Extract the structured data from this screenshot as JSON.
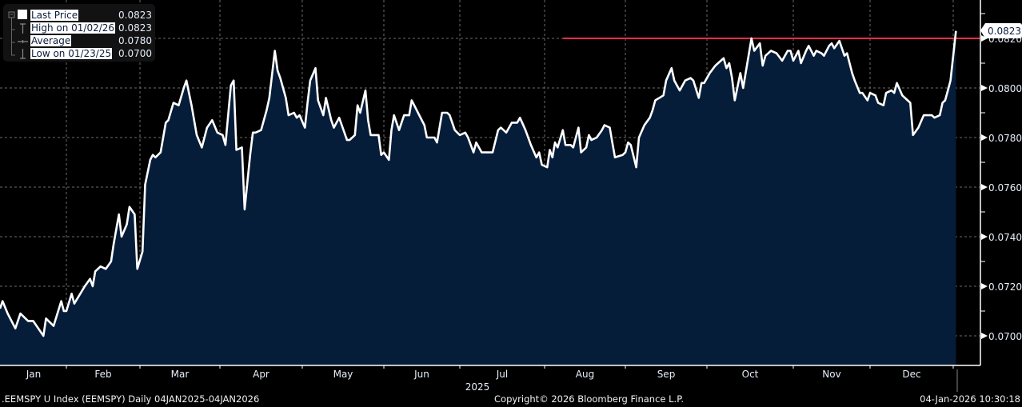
{
  "chart_data": {
    "type": "area",
    "ticker": ".EEMSPY U Index (EEMSPY) Daily 04JAN2025-04JAN2026",
    "copyright": "Copyright© 2026 Bloomberg Finance L.P.",
    "timestamp": "04-Jan-2026 10:30:18",
    "year_label": "2025",
    "x_tick_labels": [
      "Jan",
      "Feb",
      "Mar",
      "Apr",
      "May",
      "Jun",
      "Jul",
      "Aug",
      "Sep",
      "Oct",
      "Nov",
      "Dec"
    ],
    "y_ticks": [
      0.07,
      0.072,
      0.074,
      0.076,
      0.078,
      0.08,
      0.082
    ],
    "y_tick_labels": [
      "0.0700",
      "0.0720",
      "0.0740",
      "0.0760",
      "0.0780",
      "0.0800",
      "0.0820"
    ],
    "ylim": [
      0.0688,
      0.0833
    ],
    "xlim": [
      "2025-01-06",
      "2026-01-04"
    ],
    "grid": true,
    "legend_placement": "top-left",
    "colors": {
      "line": "#ffffff",
      "fill": "#061d3a",
      "high_line": "#ff2a4d",
      "background": "#000000",
      "axis_text": "#e6eefa"
    },
    "legend": [
      {
        "name": "Last Price",
        "value": "0.0823",
        "icon": "filled-square-icon"
      },
      {
        "name": "High on 01/02/26",
        "value": "0.0823",
        "icon": "high-marker-icon"
      },
      {
        "name": "Average",
        "value": "0.0780",
        "icon": "average-marker-icon"
      },
      {
        "name": "Low on 01/23/25",
        "value": "0.0700",
        "icon": "low-marker-icon"
      }
    ],
    "last_price_tag": "0.0823",
    "high_line": {
      "value": 0.082,
      "start": "2025-08-08"
    },
    "series": [
      {
        "points": [
          [
            "2025-01-06",
            0.0711
          ],
          [
            "2025-01-07",
            0.0714
          ],
          [
            "2025-01-09",
            0.0709
          ],
          [
            "2025-01-12",
            0.0703
          ],
          [
            "2025-01-14",
            0.0709
          ],
          [
            "2025-01-17",
            0.0706
          ],
          [
            "2025-01-19",
            0.0706
          ],
          [
            "2025-01-23",
            0.07
          ],
          [
            "2025-01-24",
            0.0707
          ],
          [
            "2025-01-27",
            0.0704
          ],
          [
            "2025-01-30",
            0.0714
          ],
          [
            "2025-01-31",
            0.071
          ],
          [
            "2025-02-01",
            0.071
          ],
          [
            "2025-02-03",
            0.0717
          ],
          [
            "2025-02-04",
            0.0713
          ],
          [
            "2025-02-08",
            0.072
          ],
          [
            "2025-02-10",
            0.0723
          ],
          [
            "2025-02-11",
            0.072
          ],
          [
            "2025-02-12",
            0.0726
          ],
          [
            "2025-02-14",
            0.0728
          ],
          [
            "2025-02-16",
            0.0727
          ],
          [
            "2025-02-18",
            0.073
          ],
          [
            "2025-02-19",
            0.0737
          ],
          [
            "2025-02-21",
            0.0749
          ],
          [
            "2025-02-22",
            0.074
          ],
          [
            "2025-02-24",
            0.0745
          ],
          [
            "2025-02-25",
            0.0752
          ],
          [
            "2025-02-27",
            0.0749
          ],
          [
            "2025-02-28",
            0.0727
          ],
          [
            "2025-03-02",
            0.0734
          ],
          [
            "2025-03-03",
            0.0761
          ],
          [
            "2025-03-05",
            0.0771
          ],
          [
            "2025-03-06",
            0.0773
          ],
          [
            "2025-03-07",
            0.0772
          ],
          [
            "2025-03-09",
            0.0774
          ],
          [
            "2025-03-11",
            0.0786
          ],
          [
            "2025-03-12",
            0.0787
          ],
          [
            "2025-03-14",
            0.0794
          ],
          [
            "2025-03-16",
            0.0793
          ],
          [
            "2025-03-18",
            0.08
          ],
          [
            "2025-03-19",
            0.0803
          ],
          [
            "2025-03-21",
            0.0793
          ],
          [
            "2025-03-23",
            0.0781
          ],
          [
            "2025-03-25",
            0.0776
          ],
          [
            "2025-03-27",
            0.0784
          ],
          [
            "2025-03-29",
            0.0787
          ],
          [
            "2025-03-31",
            0.0782
          ],
          [
            "2025-04-02",
            0.0781
          ],
          [
            "2025-04-03",
            0.0777
          ],
          [
            "2025-04-05",
            0.0801
          ],
          [
            "2025-04-06",
            0.0803
          ],
          [
            "2025-04-07",
            0.0775
          ],
          [
            "2025-04-09",
            0.0776
          ],
          [
            "2025-04-10",
            0.0751
          ],
          [
            "2025-04-12",
            0.0773
          ],
          [
            "2025-04-13",
            0.0782
          ],
          [
            "2025-04-14",
            0.0782
          ],
          [
            "2025-04-16",
            0.0783
          ],
          [
            "2025-04-18",
            0.0791
          ],
          [
            "2025-04-19",
            0.0796
          ],
          [
            "2025-04-21",
            0.0815
          ],
          [
            "2025-04-22",
            0.0807
          ],
          [
            "2025-04-23",
            0.0804
          ],
          [
            "2025-04-25",
            0.0796
          ],
          [
            "2025-04-26",
            0.0789
          ],
          [
            "2025-04-28",
            0.079
          ],
          [
            "2025-04-29",
            0.0788
          ],
          [
            "2025-04-30",
            0.0789
          ],
          [
            "2025-05-02",
            0.0784
          ],
          [
            "2025-05-03",
            0.0794
          ],
          [
            "2025-05-04",
            0.0803
          ],
          [
            "2025-05-06",
            0.0808
          ],
          [
            "2025-05-07",
            0.0795
          ],
          [
            "2025-05-09",
            0.0789
          ],
          [
            "2025-05-10",
            0.0796
          ],
          [
            "2025-05-12",
            0.0787
          ],
          [
            "2025-05-13",
            0.0784
          ],
          [
            "2025-05-15",
            0.0788
          ],
          [
            "2025-05-16",
            0.0785
          ],
          [
            "2025-05-18",
            0.0779
          ],
          [
            "2025-05-19",
            0.0779
          ],
          [
            "2025-05-21",
            0.0781
          ],
          [
            "2025-05-22",
            0.0793
          ],
          [
            "2025-05-23",
            0.079
          ],
          [
            "2025-05-25",
            0.0799
          ],
          [
            "2025-05-26",
            0.0787
          ],
          [
            "2025-05-27",
            0.0781
          ],
          [
            "2025-05-30",
            0.0781
          ],
          [
            "2025-05-31",
            0.0773
          ],
          [
            "2025-06-01",
            0.0774
          ],
          [
            "2025-06-03",
            0.0771
          ],
          [
            "2025-06-04",
            0.0783
          ],
          [
            "2025-06-05",
            0.0789
          ],
          [
            "2025-06-07",
            0.0783
          ],
          [
            "2025-06-09",
            0.0789
          ],
          [
            "2025-06-11",
            0.0789
          ],
          [
            "2025-06-12",
            0.0795
          ],
          [
            "2025-06-13",
            0.0793
          ],
          [
            "2025-06-15",
            0.0789
          ],
          [
            "2025-06-17",
            0.0785
          ],
          [
            "2025-06-18",
            0.078
          ],
          [
            "2025-06-21",
            0.078
          ],
          [
            "2025-06-22",
            0.0778
          ],
          [
            "2025-06-24",
            0.079
          ],
          [
            "2025-06-26",
            0.079
          ],
          [
            "2025-06-27",
            0.0789
          ],
          [
            "2025-06-29",
            0.0783
          ],
          [
            "2025-07-01",
            0.0781
          ],
          [
            "2025-07-03",
            0.0782
          ],
          [
            "2025-07-04",
            0.078
          ],
          [
            "2025-07-06",
            0.0774
          ],
          [
            "2025-07-07",
            0.0778
          ],
          [
            "2025-07-09",
            0.0774
          ],
          [
            "2025-07-13",
            0.0774
          ],
          [
            "2025-07-15",
            0.0783
          ],
          [
            "2025-07-16",
            0.0784
          ],
          [
            "2025-07-18",
            0.0782
          ],
          [
            "2025-07-20",
            0.0786
          ],
          [
            "2025-07-22",
            0.0786
          ],
          [
            "2025-07-23",
            0.0788
          ],
          [
            "2025-07-25",
            0.0783
          ],
          [
            "2025-07-27",
            0.0777
          ],
          [
            "2025-07-29",
            0.0772
          ],
          [
            "2025-07-30",
            0.0774
          ],
          [
            "2025-07-31",
            0.0769
          ],
          [
            "2025-08-02",
            0.0768
          ],
          [
            "2025-08-03",
            0.0775
          ],
          [
            "2025-08-04",
            0.0772
          ],
          [
            "2025-08-05",
            0.0778
          ],
          [
            "2025-08-06",
            0.0776
          ],
          [
            "2025-08-08",
            0.0783
          ],
          [
            "2025-08-09",
            0.0777
          ],
          [
            "2025-08-11",
            0.0777
          ],
          [
            "2025-08-12",
            0.0776
          ],
          [
            "2025-08-14",
            0.0784
          ],
          [
            "2025-08-15",
            0.0774
          ],
          [
            "2025-08-17",
            0.0776
          ],
          [
            "2025-08-18",
            0.0781
          ],
          [
            "2025-08-19",
            0.0779
          ],
          [
            "2025-08-21",
            0.078
          ],
          [
            "2025-08-23",
            0.0783
          ],
          [
            "2025-08-24",
            0.0785
          ],
          [
            "2025-08-26",
            0.0784
          ],
          [
            "2025-08-27",
            0.0778
          ],
          [
            "2025-08-28",
            0.0772
          ],
          [
            "2025-08-31",
            0.0773
          ],
          [
            "2025-09-01",
            0.0774
          ],
          [
            "2025-09-02",
            0.0778
          ],
          [
            "2025-09-03",
            0.0777
          ],
          [
            "2025-09-05",
            0.0768
          ],
          [
            "2025-09-06",
            0.078
          ],
          [
            "2025-09-08",
            0.0785
          ],
          [
            "2025-09-10",
            0.0788
          ],
          [
            "2025-09-11",
            0.0791
          ],
          [
            "2025-09-12",
            0.0795
          ],
          [
            "2025-09-15",
            0.0797
          ],
          [
            "2025-09-16",
            0.0803
          ],
          [
            "2025-09-18",
            0.0808
          ],
          [
            "2025-09-19",
            0.0803
          ],
          [
            "2025-09-21",
            0.0799
          ],
          [
            "2025-09-23",
            0.0803
          ],
          [
            "2025-09-25",
            0.0804
          ],
          [
            "2025-09-26",
            0.0803
          ],
          [
            "2025-09-28",
            0.0796
          ],
          [
            "2025-09-29",
            0.0802
          ],
          [
            "2025-09-30",
            0.0802
          ],
          [
            "2025-10-02",
            0.0806
          ],
          [
            "2025-10-04",
            0.0809
          ],
          [
            "2025-10-06",
            0.0811
          ],
          [
            "2025-10-07",
            0.0812
          ],
          [
            "2025-10-08",
            0.0808
          ],
          [
            "2025-10-09",
            0.081
          ],
          [
            "2025-10-10",
            0.0804
          ],
          [
            "2025-10-11",
            0.0795
          ],
          [
            "2025-10-13",
            0.0806
          ],
          [
            "2025-10-14",
            0.08
          ],
          [
            "2025-10-17",
            0.082
          ],
          [
            "2025-10-18",
            0.0815
          ],
          [
            "2025-10-20",
            0.0818
          ],
          [
            "2025-10-21",
            0.0809
          ],
          [
            "2025-10-22",
            0.0813
          ],
          [
            "2025-10-24",
            0.0815
          ],
          [
            "2025-10-26",
            0.0814
          ],
          [
            "2025-10-28",
            0.0811
          ],
          [
            "2025-10-30",
            0.0815
          ],
          [
            "2025-10-31",
            0.0815
          ],
          [
            "2025-11-01",
            0.0811
          ],
          [
            "2025-11-03",
            0.0815
          ],
          [
            "2025-11-04",
            0.081
          ],
          [
            "2025-11-06",
            0.0815
          ],
          [
            "2025-11-07",
            0.0817
          ],
          [
            "2025-11-09",
            0.0813
          ],
          [
            "2025-11-10",
            0.0815
          ],
          [
            "2025-11-12",
            0.0814
          ],
          [
            "2025-11-13",
            0.0813
          ],
          [
            "2025-11-15",
            0.0817
          ],
          [
            "2025-11-16",
            0.0818
          ],
          [
            "2025-11-17",
            0.0816
          ],
          [
            "2025-11-19",
            0.0819
          ],
          [
            "2025-11-21",
            0.0813
          ],
          [
            "2025-11-22",
            0.0814
          ],
          [
            "2025-11-24",
            0.0806
          ],
          [
            "2025-11-25",
            0.0803
          ],
          [
            "2025-11-27",
            0.0798
          ],
          [
            "2025-11-28",
            0.0798
          ],
          [
            "2025-11-30",
            0.0795
          ],
          [
            "2025-12-01",
            0.0798
          ],
          [
            "2025-12-03",
            0.0797
          ],
          [
            "2025-12-04",
            0.0794
          ],
          [
            "2025-12-06",
            0.0793
          ],
          [
            "2025-12-07",
            0.0798
          ],
          [
            "2025-12-09",
            0.0799
          ],
          [
            "2025-12-10",
            0.0798
          ],
          [
            "2025-12-11",
            0.0802
          ],
          [
            "2025-12-13",
            0.0797
          ],
          [
            "2025-12-15",
            0.0795
          ],
          [
            "2025-12-16",
            0.0794
          ],
          [
            "2025-12-17",
            0.0781
          ],
          [
            "2025-12-19",
            0.0784
          ],
          [
            "2025-12-21",
            0.0789
          ],
          [
            "2025-12-24",
            0.0789
          ],
          [
            "2025-12-25",
            0.0788
          ],
          [
            "2025-12-27",
            0.0789
          ],
          [
            "2025-12-28",
            0.0794
          ],
          [
            "2025-12-29",
            0.0795
          ],
          [
            "2025-12-30",
            0.0799
          ],
          [
            "2025-12-31",
            0.0803
          ],
          [
            "2026-01-02",
            0.0823
          ]
        ]
      }
    ]
  }
}
